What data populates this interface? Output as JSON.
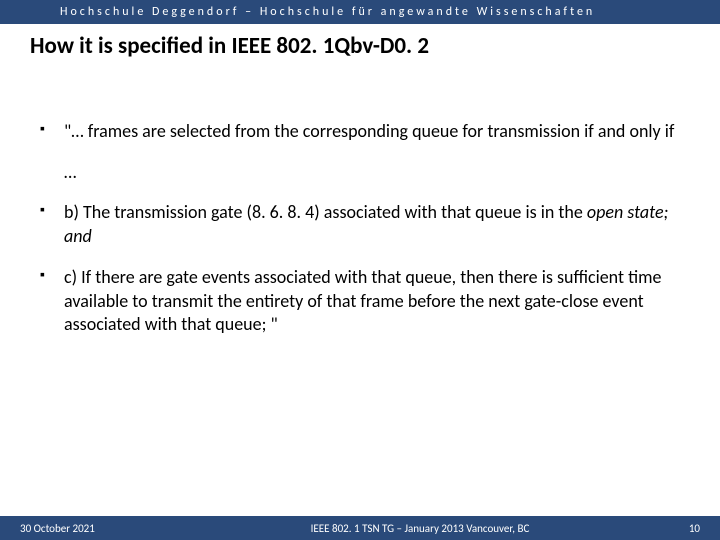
{
  "header": {
    "institution": "Hochschule Deggendorf – Hochschule für angewandte Wissenschaften"
  },
  "title": "How it is specified in IEEE 802. 1Qbv-D0. 2",
  "bullets": [
    {
      "text": "\"… frames are selected from the corresponding queue for transmission if and only if"
    },
    {
      "ellipsis": "…"
    },
    {
      "prefix": "b) The transmission gate (8. 6. 8. 4) associated with that queue is in the ",
      "italic": "open state; and"
    },
    {
      "text": "c) If there are gate events associated with that queue, then there is sufficient time available to transmit the entirety of that frame before the next gate-close event associated with that queue; \""
    }
  ],
  "footer": {
    "date": "30 October 2021",
    "meeting": "IEEE 802. 1 TSN TG – January 2013 Vancouver, BC",
    "page": "10"
  },
  "colors": {
    "bar": "#2a4a7a",
    "text": "#000000",
    "header_text": "#ffffff"
  }
}
